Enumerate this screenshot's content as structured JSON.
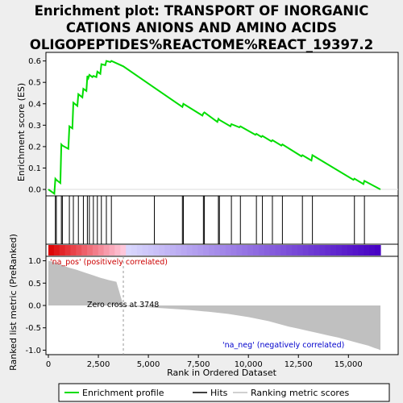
{
  "chart_data": {
    "type": "line",
    "title_lines": [
      "Enrichment plot: TRANSPORT OF INORGANIC",
      "CATIONS ANIONS AND AMINO ACIDS",
      "OLIGOPEPTIDES%REACTOME%REACT_19397.2"
    ],
    "xlabel": "Rank in Ordered Dataset",
    "es_ylabel": "Enrichment score (ES)",
    "metric_ylabel": "Ranked list metric (PreRanked)",
    "xlim": [
      0,
      16700
    ],
    "es_ylim": [
      -0.03,
      0.64
    ],
    "metric_ylim": [
      -1.1,
      1.1
    ],
    "x_ticks": [
      0,
      2500,
      5000,
      7500,
      10000,
      12500,
      15000
    ],
    "x_tick_labels": [
      "0",
      "2,500",
      "5,000",
      "7,500",
      "10,000",
      "12,500",
      "15,000"
    ],
    "es_ticks": [
      0.0,
      0.1,
      0.2,
      0.3,
      0.4,
      0.5,
      0.6
    ],
    "es_tick_labels": [
      "0.0",
      "0.1",
      "0.2",
      "0.3",
      "0.4",
      "0.5",
      "0.6"
    ],
    "metric_ticks": [
      1.0,
      0.5,
      0.0,
      -0.5,
      -1.0
    ],
    "metric_tick_labels": [
      "1.0",
      "0.5",
      "0.0",
      "-0.5",
      "-1.0"
    ],
    "hits": [
      350,
      400,
      650,
      700,
      1050,
      1250,
      1500,
      1750,
      1950,
      2050,
      2250,
      2450,
      2650,
      2900,
      3150,
      5300,
      6700,
      6750,
      7750,
      7800,
      8500,
      8550,
      9150,
      9600,
      10400,
      10700,
      11200,
      11700,
      12700,
      13200,
      15300,
      15800
    ],
    "es_curve": {
      "x": [
        0,
        300,
        350,
        400,
        600,
        650,
        700,
        1000,
        1050,
        1200,
        1250,
        1450,
        1500,
        1700,
        1750,
        1900,
        1950,
        2000,
        2050,
        2200,
        2250,
        2400,
        2450,
        2600,
        2650,
        2850,
        2900,
        3100,
        3150,
        3748,
        5300,
        6700,
        6750,
        7700,
        7750,
        7800,
        8450,
        8500,
        8550,
        9100,
        9150,
        9550,
        9600,
        10350,
        10400,
        10650,
        10700,
        11150,
        11200,
        11650,
        11700,
        12650,
        12700,
        13150,
        13200,
        15250,
        15300,
        15750,
        15800,
        16600
      ],
      "y": [
        0.0,
        -0.02,
        0.05,
        0.045,
        0.03,
        0.21,
        0.205,
        0.19,
        0.295,
        0.285,
        0.405,
        0.39,
        0.445,
        0.43,
        0.47,
        0.46,
        0.53,
        0.52,
        0.535,
        0.525,
        0.53,
        0.525,
        0.55,
        0.54,
        0.585,
        0.58,
        0.6,
        0.595,
        0.6,
        0.575,
        0.475,
        0.385,
        0.4,
        0.345,
        0.355,
        0.36,
        0.315,
        0.33,
        0.325,
        0.295,
        0.305,
        0.29,
        0.295,
        0.255,
        0.26,
        0.245,
        0.25,
        0.225,
        0.23,
        0.205,
        0.21,
        0.155,
        0.16,
        0.135,
        0.16,
        0.045,
        0.05,
        0.025,
        0.04,
        0.0
      ]
    },
    "metric_curve": {
      "x": [
        0,
        200,
        400,
        700,
        1000,
        1400,
        1800,
        2200,
        2600,
        3000,
        3400,
        3748,
        4000,
        5000,
        6000,
        7000,
        8000,
        9000,
        10000,
        11000,
        11500,
        12000,
        12500,
        13000,
        13500,
        14000,
        14500,
        15000,
        15500,
        16000,
        16300,
        16500,
        16600
      ],
      "y": [
        1.0,
        0.98,
        0.95,
        0.9,
        0.85,
        0.8,
        0.74,
        0.68,
        0.62,
        0.57,
        0.53,
        0.0,
        -0.02,
        -0.04,
        -0.07,
        -0.1,
        -0.14,
        -0.19,
        -0.26,
        -0.35,
        -0.41,
        -0.47,
        -0.52,
        -0.57,
        -0.62,
        -0.67,
        -0.72,
        -0.78,
        -0.84,
        -0.9,
        -0.95,
        -0.98,
        -1.0
      ]
    },
    "zero_cross_label": "Zero cross at 3748",
    "zero_cross_x": 3748,
    "pos_label": "'na_pos' (positively correlated)",
    "neg_label": "'na_neg' (negatively correlated)",
    "legend": {
      "entries": [
        "Enrichment profile",
        "Hits",
        "Ranking metric scores"
      ]
    },
    "colors": {
      "enrichment_line": "#00dd00",
      "hit_line": "#000000",
      "metric_fill": "#c0c0c0",
      "pos_label": "#cc0000",
      "neg_label": "#0000cc",
      "zero_line": "#cccccc"
    }
  }
}
